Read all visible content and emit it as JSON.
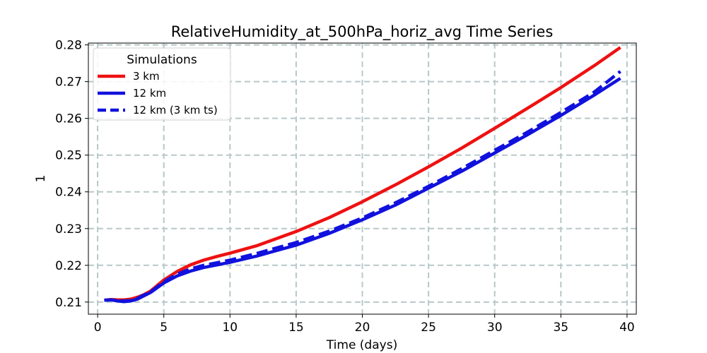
{
  "chart_data": {
    "type": "line",
    "title": "RelativeHumidity_at_500hPa_horiz_avg Time Series",
    "xlabel": "Time (days)",
    "ylabel": "1",
    "xlim": [
      -0.7,
      40.7
    ],
    "ylim": [
      0.2067,
      0.2805
    ],
    "x_ticks": [
      0,
      5,
      10,
      15,
      20,
      25,
      30,
      35,
      40
    ],
    "x_tick_labels": [
      "0",
      "5",
      "10",
      "15",
      "20",
      "25",
      "30",
      "35",
      "40"
    ],
    "y_ticks": [
      0.21,
      0.22,
      0.23,
      0.24,
      0.25,
      0.26,
      0.27,
      0.28
    ],
    "y_tick_labels": [
      "0.21",
      "0.22",
      "0.23",
      "0.24",
      "0.25",
      "0.26",
      "0.27",
      "0.28"
    ],
    "grid": true,
    "legend": {
      "title": "Simulations",
      "location": "upper left"
    },
    "series": [
      {
        "name": "3 km",
        "color": "#ee1111",
        "style": "solid",
        "x": [
          0.5,
          1,
          1.5,
          2,
          2.5,
          3,
          3.5,
          4,
          5,
          6,
          7,
          8,
          9,
          10,
          12,
          15,
          17.5,
          20,
          22.5,
          25,
          27.5,
          30,
          32.5,
          35,
          37.5,
          39.5
        ],
        "values": [
          0.2105,
          0.2107,
          0.2106,
          0.2106,
          0.2108,
          0.2113,
          0.212,
          0.213,
          0.216,
          0.2183,
          0.2201,
          0.2214,
          0.2224,
          0.2233,
          0.2253,
          0.2292,
          0.233,
          0.2373,
          0.2419,
          0.2468,
          0.2519,
          0.2573,
          0.2628,
          0.2684,
          0.2743,
          0.2793
        ]
      },
      {
        "name": "12 km",
        "color": "#1111dd",
        "style": "solid",
        "x": [
          0.5,
          1,
          1.5,
          2,
          2.5,
          3,
          3.5,
          4,
          5,
          6,
          7,
          8,
          9,
          10,
          12,
          15,
          17.5,
          20,
          22.5,
          25,
          27.5,
          30,
          32.5,
          35,
          37.5,
          39.5
        ],
        "values": [
          0.2105,
          0.2106,
          0.2103,
          0.2101,
          0.2103,
          0.2108,
          0.2117,
          0.2126,
          0.2152,
          0.2171,
          0.2184,
          0.2194,
          0.2201,
          0.2208,
          0.2225,
          0.2255,
          0.2287,
          0.2324,
          0.2364,
          0.241,
          0.2456,
          0.2506,
          0.2556,
          0.2608,
          0.2663,
          0.2709
        ]
      },
      {
        "name": "12 km (3 km ts)",
        "color": "#1111dd",
        "style": "dashed",
        "x": [
          0.5,
          1,
          1.5,
          2,
          2.5,
          3,
          3.5,
          4,
          5,
          6,
          7,
          8,
          9,
          10,
          12,
          15,
          17.5,
          20,
          22.5,
          25,
          27.5,
          30,
          32.5,
          35,
          37.5,
          39.5
        ],
        "values": [
          0.2105,
          0.2106,
          0.2104,
          0.2103,
          0.2104,
          0.211,
          0.2119,
          0.2128,
          0.2155,
          0.2176,
          0.219,
          0.22,
          0.2207,
          0.2214,
          0.2232,
          0.2262,
          0.2293,
          0.2329,
          0.237,
          0.2415,
          0.2463,
          0.2513,
          0.2563,
          0.2616,
          0.2671,
          0.2728
        ]
      }
    ]
  }
}
